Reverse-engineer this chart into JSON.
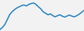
{
  "y_values": [
    5,
    12,
    22,
    38,
    55,
    65,
    72,
    78,
    82,
    86,
    88,
    85,
    90,
    93,
    95,
    90,
    82,
    75,
    65,
    60,
    55,
    58,
    52,
    48,
    52,
    55,
    50,
    47,
    51,
    54,
    50,
    48,
    52,
    57,
    63,
    70
  ],
  "line_color": "#3a8ec8",
  "line_width": 1.4,
  "background_color": "#f2f2f2",
  "ylim": [
    0,
    105
  ],
  "xlim": [
    0,
    35
  ]
}
